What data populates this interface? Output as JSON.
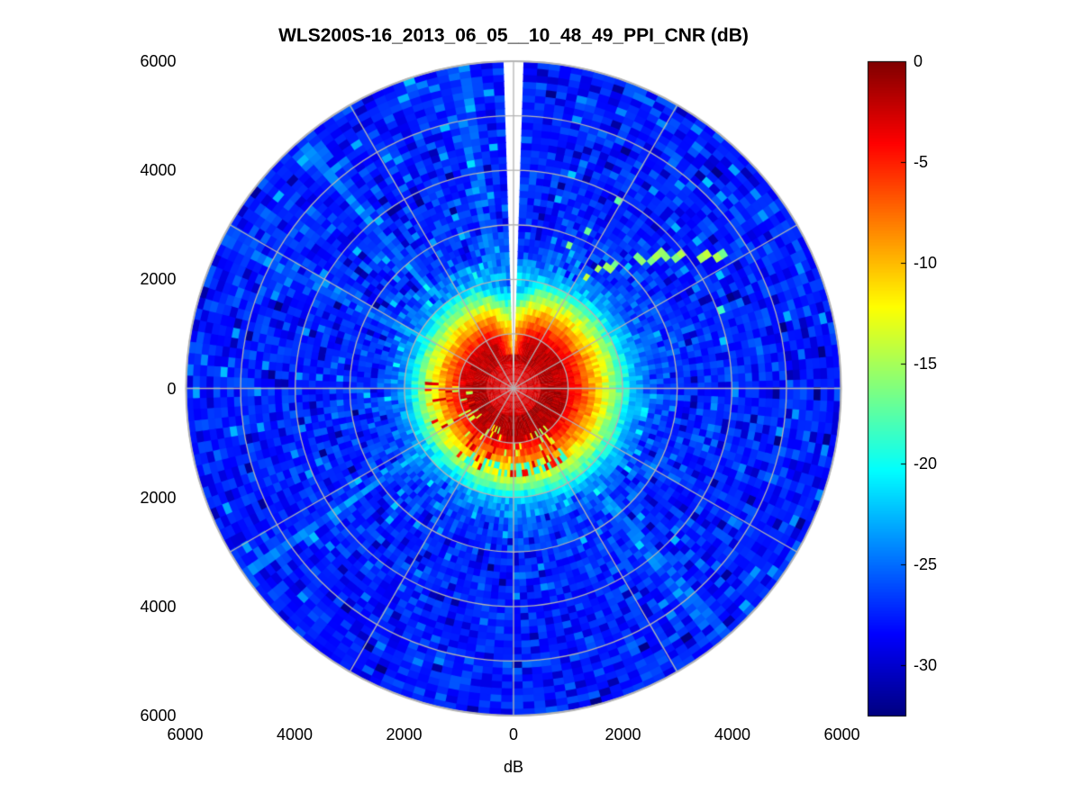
{
  "chart_data": {
    "type": "heatmap",
    "subtype": "polar_ppi_scan",
    "title": "WLS200S-16_2013_06_05__10_48_49_PPI_CNR (dB)",
    "xlabel": "dB",
    "units": "dB",
    "x_tick_labels": [
      "6000",
      "4000",
      "2000",
      "0",
      "2000",
      "4000",
      "6000"
    ],
    "y_tick_labels": [
      "6000",
      "4000",
      "2000",
      "0",
      "2000",
      "4000",
      "6000"
    ],
    "range_max_m": 6000,
    "background_color": "#ffffff",
    "grid": {
      "ring_radii_m": [
        1000,
        2000,
        3000,
        4000,
        5000,
        6000
      ],
      "spoke_step_deg": 30,
      "color": "#b4b4b4"
    },
    "colorbar": {
      "colormap": "jet",
      "value_min": -32.5,
      "value_max": 0,
      "tick_labels": [
        "0",
        "-5",
        "-10",
        "-15",
        "-20",
        "-25",
        "-30"
      ],
      "tick_values": [
        0,
        -5,
        -10,
        -15,
        -20,
        -25,
        -30
      ]
    },
    "missing_data_wedge_deg": [
      88,
      92
    ],
    "radial_profile_estimate": {
      "radius_m": [
        0,
        500,
        900,
        1100,
        1300,
        1500,
        1700,
        1900,
        2100,
        2500,
        3200,
        6000
      ],
      "cnr_db": [
        -3.2,
        -2.6,
        -3.0,
        -5,
        -8,
        -11.5,
        -15,
        -19,
        -23,
        -26.2,
        -27.2,
        -27.6
      ]
    },
    "noise_texture_db": 2.4,
    "features": {
      "core_bulge_frac": 0.06,
      "top_notch": {
        "angle_deg": [
          70,
          115
        ],
        "radius_m": [
          600,
          2000
        ],
        "depth_db": 6
      },
      "green_streak": {
        "radius_m": [
          2300,
          4500
        ],
        "angle_start_deg": 58,
        "angle_end_deg": 32,
        "cnr_db": -15.5
      },
      "hard_target_speckle": {
        "angle_deg": [
          175,
          310
        ],
        "radius_m": [
          700,
          1600
        ],
        "density": 0.28
      },
      "cyan_arc": {
        "angle_deg": [
          235,
          308
        ],
        "radius_m": [
          1380,
          1680
        ],
        "cnr_db": -19
      },
      "light_rays_deg": [
        100,
        131,
        152,
        215,
        268,
        310
      ]
    }
  }
}
